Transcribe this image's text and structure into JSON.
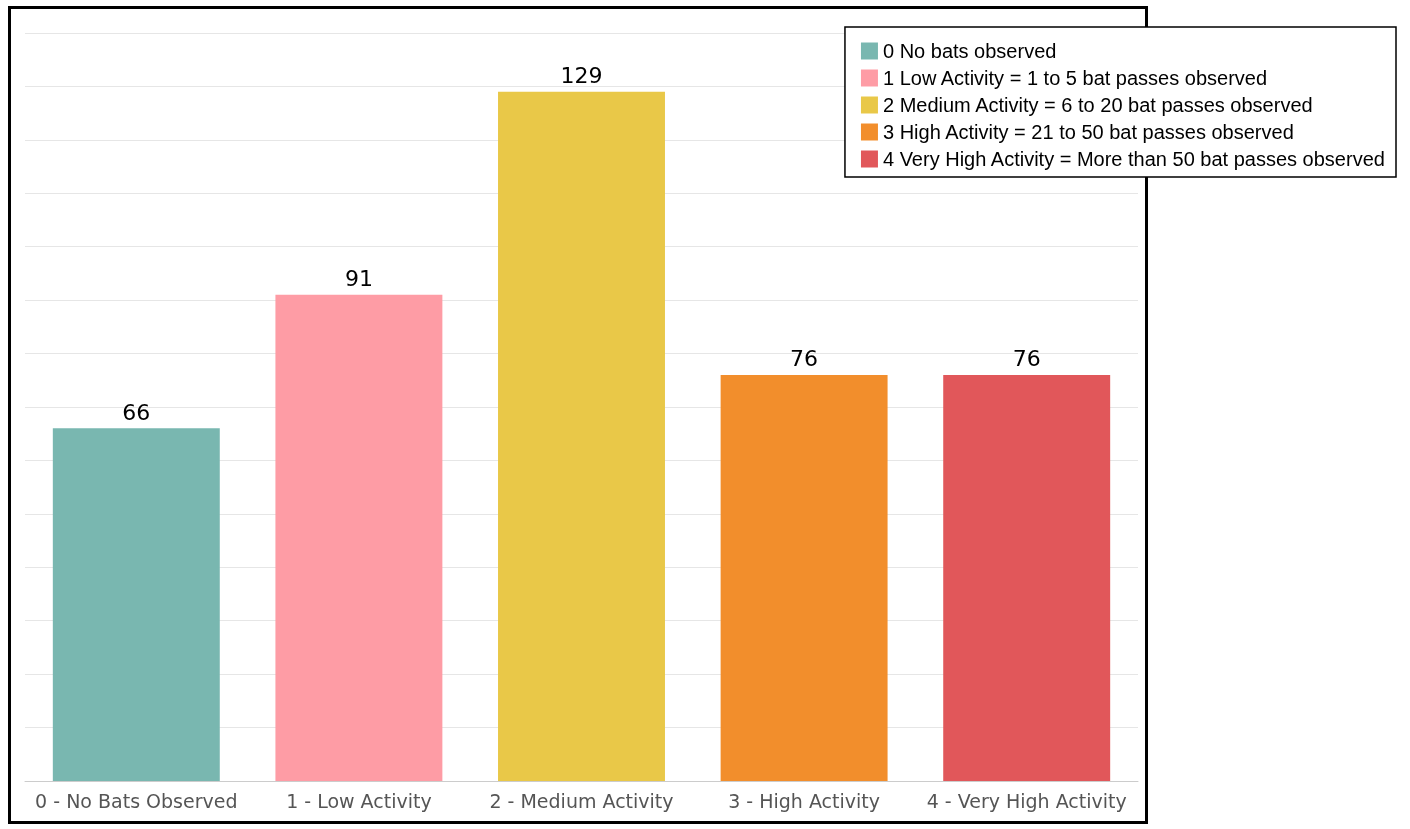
{
  "chart_data": {
    "type": "bar",
    "categories": [
      "0 - No Bats Observed",
      "1 - Low Activity",
      "2 - Medium Activity",
      "3 - High Activity",
      "4 - Very High Activity"
    ],
    "series": [
      {
        "name": "0 No bats observed",
        "color": "#79b7b0",
        "values": [
          66,
          null,
          null,
          null,
          null
        ]
      },
      {
        "name": "1 Low Activity = 1 to 5 bat passes observed",
        "color": "#fe9ca5",
        "values": [
          null,
          91,
          null,
          null,
          null
        ]
      },
      {
        "name": "2 Medium Activity = 6 to 20 bat passes observed",
        "color": "#e9c848",
        "values": [
          null,
          null,
          129,
          null,
          null
        ]
      },
      {
        "name": "3 High Activity = 21 to 50 bat passes observed",
        "color": "#f28e2c",
        "values": [
          null,
          null,
          null,
          76,
          null
        ]
      },
      {
        "name": "4 Very High Activity = More than 50 bat passes observed",
        "color": "#e1575a",
        "values": [
          null,
          null,
          null,
          null,
          76
        ]
      }
    ],
    "ylim": [
      0,
      140
    ],
    "yticks": [
      0,
      10,
      20,
      30,
      40,
      50,
      60,
      70,
      80,
      90,
      100,
      110,
      120,
      130,
      140
    ],
    "tick_labels": "x",
    "grid": "y",
    "legend": "top right",
    "data_labels": true
  }
}
